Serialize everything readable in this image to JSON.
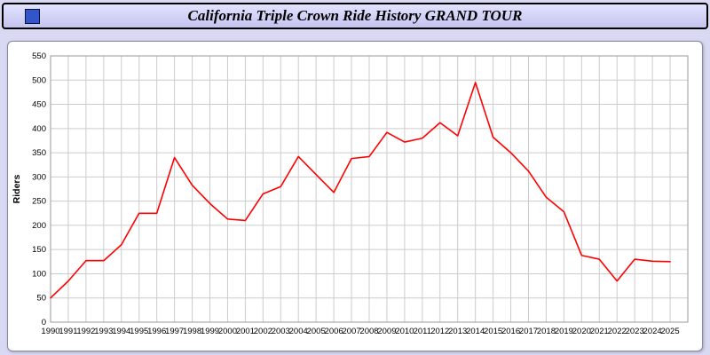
{
  "header": {
    "title": "California Triple Crown Ride History GRAND TOUR"
  },
  "colors": {
    "page_bg": "#d9d9f3",
    "header_bg": "#ccccff",
    "panel_bg": "#ffffff",
    "line": "#ff0000",
    "grid": "#cccccc",
    "axis_frame": "#999999",
    "tick_text": "#000000"
  },
  "chart_data": {
    "type": "line",
    "title": "California Triple Crown Ride History GRAND TOUR",
    "xlabel": "",
    "ylabel": "Riders",
    "ylim": [
      0,
      550
    ],
    "ytick_step": 50,
    "grid": true,
    "legend": "none",
    "categories": [
      1990,
      1991,
      1992,
      1993,
      1994,
      1995,
      1996,
      1997,
      1998,
      1999,
      2000,
      2001,
      2002,
      2003,
      2004,
      2005,
      2006,
      2007,
      2008,
      2009,
      2010,
      2011,
      2012,
      2013,
      2014,
      2015,
      2016,
      2017,
      2018,
      2019,
      2020,
      2021,
      2022,
      2023,
      2024,
      2025
    ],
    "series": [
      {
        "name": "Riders",
        "color": "#ff0000",
        "values": [
          50,
          85,
          127,
          127,
          160,
          225,
          225,
          340,
          283,
          245,
          213,
          210,
          265,
          280,
          342,
          305,
          268,
          338,
          342,
          392,
          372,
          380,
          412,
          385,
          495,
          382,
          350,
          312,
          258,
          228,
          138,
          130,
          85,
          130,
          126,
          125
        ]
      }
    ]
  }
}
